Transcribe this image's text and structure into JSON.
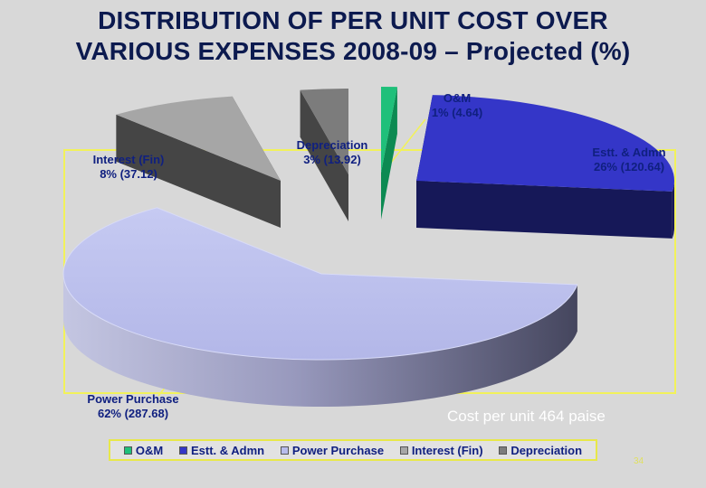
{
  "title_line1": "DISTRIBUTION OF PER UNIT COST OVER",
  "title_line2": "VARIOUS EXPENSES 2008-09 – Projected (%)",
  "cost_note": "Cost per unit 464 paise",
  "page_number": "34",
  "chart_data": {
    "type": "pie",
    "exploded": true,
    "three_d": true,
    "series": [
      {
        "name": "O&M",
        "percent": 1,
        "value": 4.64,
        "label_line1": "O&M",
        "label_line2": "1% (4.64)",
        "color": "#1fc07a"
      },
      {
        "name": "Estt. & Admn",
        "percent": 26,
        "value": 120.64,
        "label_line1": "Estt. & Admn",
        "label_line2": "26% (120.64)",
        "color": "#3436c8"
      },
      {
        "name": "Power Purchase",
        "percent": 62,
        "value": 287.68,
        "label_line1": "Power Purchase",
        "label_line2": "62% (287.68)",
        "color": "#b8bcec"
      },
      {
        "name": "Interest (Fin)",
        "percent": 8,
        "value": 37.12,
        "label_line1": "Interest (Fin)",
        "label_line2": "8% (37.12)",
        "color": "#a6a6a6"
      },
      {
        "name": "Depreciation",
        "percent": 3,
        "value": 13.92,
        "label_line1": "Depreciation",
        "label_line2": "3% (13.92)",
        "color": "#7c7c7c"
      }
    ],
    "legend": {
      "placement": "bottom",
      "items": [
        "O&M",
        "Estt. & Admn",
        "Power Purchase",
        "Interest (Fin)",
        "Depreciation"
      ]
    }
  }
}
